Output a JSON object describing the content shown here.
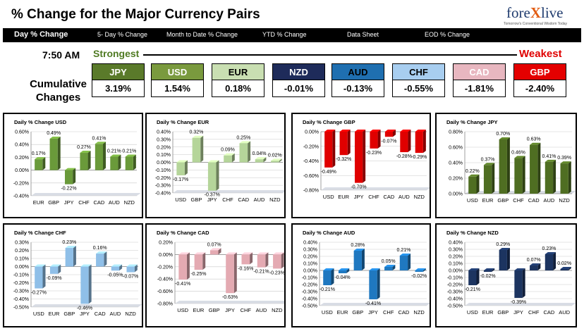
{
  "header": {
    "title": "% Change for the Major Currency Pairs",
    "logo_text_a": "fore",
    "logo_text_x": "X",
    "logo_text_b": "live",
    "logo_tagline": "Tomorrow's Conventional Wisdom Today"
  },
  "nav": [
    "Day % Change",
    "5- Day % Change",
    "Month to Date % Change",
    "YTD % Change",
    "Data Sheet",
    "EOD % Change"
  ],
  "summary": {
    "time": "7:50 AM",
    "cumulative_label_1": "Cumulative",
    "cumulative_label_2": "Changes",
    "strongest": "Strongest",
    "weakest": "Weakest",
    "currencies": [
      {
        "code": "JPY",
        "value": "3.19%",
        "color": "#5a7a2a",
        "text": "#ffffff"
      },
      {
        "code": "USD",
        "value": "1.54%",
        "color": "#7a9a3e",
        "text": "#ffffff"
      },
      {
        "code": "EUR",
        "value": "0.18%",
        "color": "#c9dfb2",
        "text": "#000000"
      },
      {
        "code": "NZD",
        "value": "-0.01%",
        "color": "#1e2b5a",
        "text": "#ffffff"
      },
      {
        "code": "AUD",
        "value": "-0.13%",
        "color": "#1f6fb0",
        "text": "#000000"
      },
      {
        "code": "CHF",
        "value": "-0.55%",
        "color": "#a8cef0",
        "text": "#000000"
      },
      {
        "code": "CAD",
        "value": "-1.81%",
        "color": "#e8b7c0",
        "text": "#ffffff"
      },
      {
        "code": "GBP",
        "value": "-2.40%",
        "color": "#e40000",
        "text": "#ffffff"
      }
    ]
  },
  "chart_data": [
    {
      "type": "bar",
      "title": "Daily % Change USD",
      "categories": [
        "EUR",
        "GBP",
        "JPY",
        "CHF",
        "CAD",
        "AUD",
        "NZD"
      ],
      "values": [
        0.17,
        0.49,
        -0.22,
        0.27,
        0.41,
        0.21,
        0.21
      ],
      "labels": [
        "0.17%",
        "0.49%",
        "-0.22%",
        "0.27%",
        "0.41%",
        "0.21%",
        "0.21%"
      ],
      "ylim": [
        -0.4,
        0.6
      ],
      "yticks": [
        "-0.40%",
        "-0.20%",
        "0.00%",
        "0.20%",
        "0.40%",
        "0.60%"
      ],
      "color": "#6a9a3a"
    },
    {
      "type": "bar",
      "title": "Daily % Change EUR",
      "categories": [
        "USD",
        "GBP",
        "JPY",
        "CHF",
        "CAD",
        "AUD",
        "NZD"
      ],
      "values": [
        -0.17,
        0.32,
        -0.37,
        0.09,
        0.25,
        0.04,
        0.02
      ],
      "labels": [
        "-0.17%",
        "0.32%",
        "-0.37%",
        "0.09%",
        "0.25%",
        "0.04%",
        "0.02%"
      ],
      "ylim": [
        -0.4,
        0.4
      ],
      "yticks": [
        "-0.40%",
        "-0.30%",
        "-0.20%",
        "-0.10%",
        "0.00%",
        "0.10%",
        "0.20%",
        "0.30%",
        "0.40%"
      ],
      "color": "#b5d59a"
    },
    {
      "type": "bar",
      "title": "Daily % Change GBP",
      "categories": [
        "USD",
        "EUR",
        "JPY",
        "CHF",
        "CAD",
        "AUD",
        "NZD"
      ],
      "values": [
        -0.49,
        -0.32,
        -0.7,
        -0.23,
        -0.07,
        -0.28,
        -0.29
      ],
      "labels": [
        "-0.49%",
        "-0.32%",
        "-0.70%",
        "-0.23%",
        "-0.07%",
        "-0.28%",
        "-0.29%"
      ],
      "ylim": [
        -0.8,
        0.0
      ],
      "yticks": [
        "-0.80%",
        "-0.60%",
        "-0.40%",
        "-0.20%",
        "0.00%"
      ],
      "color": "#e00000"
    },
    {
      "type": "bar",
      "title": "Daily % Change JPY",
      "categories": [
        "USD",
        "EUR",
        "GBP",
        "CHF",
        "CAD",
        "AUD",
        "NZD"
      ],
      "values": [
        0.22,
        0.37,
        0.7,
        0.46,
        0.63,
        0.41,
        0.39
      ],
      "labels": [
        "0.22%",
        "0.37%",
        "0.70%",
        "0.46%",
        "0.63%",
        "0.41%",
        "0.39%"
      ],
      "ylim": [
        0.0,
        0.8
      ],
      "yticks": [
        "0.00%",
        "0.20%",
        "0.40%",
        "0.60%",
        "0.80%"
      ],
      "color": "#4f6e22"
    },
    {
      "type": "bar",
      "title": "Daily % Change CHF",
      "categories": [
        "USD",
        "EUR",
        "GBP",
        "JPY",
        "CAD",
        "AUD",
        "NZD"
      ],
      "values": [
        -0.27,
        -0.09,
        0.23,
        -0.46,
        0.16,
        -0.05,
        -0.07
      ],
      "labels": [
        "-0.27%",
        "-0.09%",
        "0.23%",
        "-0.46%",
        "0.16%",
        "-0.05%",
        "-0.07%"
      ],
      "ylim": [
        -0.5,
        0.3
      ],
      "yticks": [
        "-0.50%",
        "-0.40%",
        "-0.30%",
        "-0.20%",
        "-0.10%",
        "0.00%",
        "0.10%",
        "0.20%",
        "0.30%"
      ],
      "color": "#8fbfe8"
    },
    {
      "type": "bar",
      "title": "Daily % Change CAD",
      "categories": [
        "USD",
        "EUR",
        "GBP",
        "JPY",
        "CHF",
        "AUD",
        "NZD"
      ],
      "values": [
        -0.41,
        -0.25,
        0.07,
        -0.63,
        -0.16,
        -0.21,
        -0.23
      ],
      "labels": [
        "-0.41%",
        "-0.25%",
        "0.07%",
        "-0.63%",
        "-0.16%",
        "-0.21%",
        "-0.23%"
      ],
      "ylim": [
        -0.8,
        0.2
      ],
      "yticks": [
        "-0.80%",
        "-0.60%",
        "-0.40%",
        "-0.20%",
        "0.00%",
        "0.20%"
      ],
      "color": "#e4aab2"
    },
    {
      "type": "bar",
      "title": "Daily % Change AUD",
      "categories": [
        "USD",
        "EUR",
        "GBP",
        "JPY",
        "CHF",
        "CAD",
        "NZD"
      ],
      "values": [
        -0.21,
        -0.04,
        0.28,
        -0.41,
        0.05,
        0.21,
        -0.02
      ],
      "labels": [
        "-0.21%",
        "-0.04%",
        "0.28%",
        "-0.41%",
        "0.05%",
        "0.21%",
        "-0.02%"
      ],
      "ylim": [
        -0.5,
        0.4
      ],
      "yticks": [
        "-0.50%",
        "-0.40%",
        "-0.30%",
        "-0.20%",
        "-0.10%",
        "0.00%",
        "0.10%",
        "0.20%",
        "0.30%",
        "0.40%"
      ],
      "color": "#1f78c0"
    },
    {
      "type": "bar",
      "title": "Daily % Change NZD",
      "categories": [
        "USD",
        "EUR",
        "GBP",
        "JPY",
        "CHF",
        "CAD",
        "AUD"
      ],
      "values": [
        -0.21,
        -0.02,
        0.29,
        -0.39,
        0.07,
        0.23,
        0.02
      ],
      "labels": [
        "-0.21%",
        "-0.02%",
        "0.29%",
        "-0.39%",
        "0.07%",
        "0.23%",
        "0.02%"
      ],
      "ylim": [
        -0.5,
        0.4
      ],
      "yticks": [
        "-0.50%",
        "-0.40%",
        "-0.30%",
        "-0.20%",
        "-0.10%",
        "0.00%",
        "0.10%",
        "0.20%",
        "0.30%",
        "0.40%"
      ],
      "color": "#1c3460"
    }
  ]
}
